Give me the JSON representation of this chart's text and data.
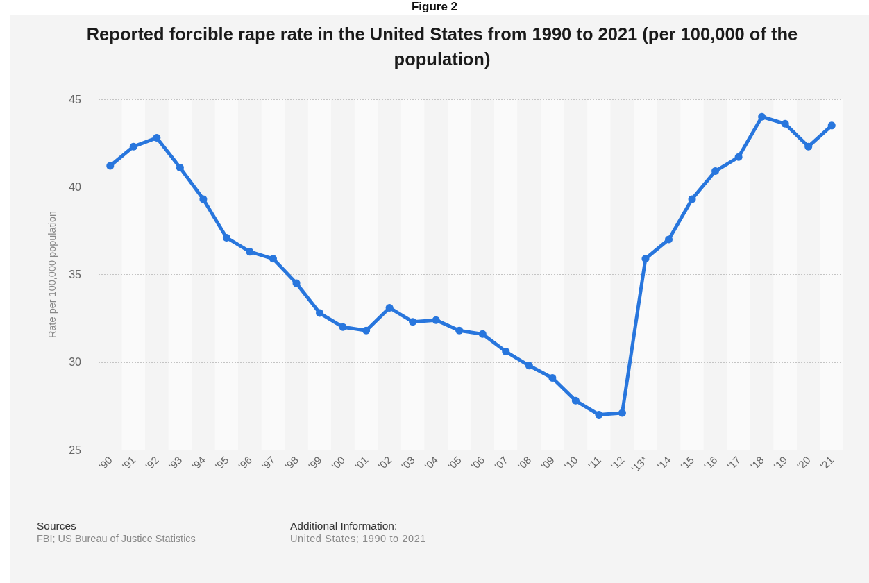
{
  "chart_data": {
    "type": "line",
    "title": "Reported forcible rape rate in the United States from 1990 to 2021 (per 100,000 of the population)",
    "ylabel": "Rate per 100,000 population",
    "categories": [
      "'90",
      "'91",
      "'92",
      "'93",
      "'94",
      "'95",
      "'96",
      "'97",
      "'98",
      "'99",
      "'00",
      "'01",
      "'02",
      "'03",
      "'04",
      "'05",
      "'06",
      "'07",
      "'08",
      "'09",
      "'10",
      "'11",
      "'12",
      "'13*",
      "'14",
      "'15",
      "'16",
      "'17",
      "'18",
      "'19",
      "'20",
      "'21"
    ],
    "series": [
      {
        "color": "#2876dd",
        "values": [
          41.2,
          42.3,
          42.8,
          41.1,
          39.3,
          37.1,
          36.3,
          35.9,
          34.5,
          32.8,
          32.0,
          31.8,
          33.1,
          32.3,
          32.4,
          31.8,
          31.6,
          30.6,
          29.8,
          29.1,
          27.8,
          27.0,
          27.1,
          35.9,
          37.0,
          39.3,
          40.9,
          41.7,
          44.0,
          43.6,
          42.3,
          43.5
        ]
      }
    ],
    "ylim": [
      25,
      45
    ],
    "yticks": [
      25,
      30,
      35,
      40,
      45
    ],
    "grid": "y",
    "marker": "circle",
    "line_style": "solid",
    "annotations": [
      "Figure 2",
      "Sources",
      "FBI; US Bureau of Justice Statistics",
      "Additional Information:",
      "United States; 1990 to 2021"
    ]
  }
}
